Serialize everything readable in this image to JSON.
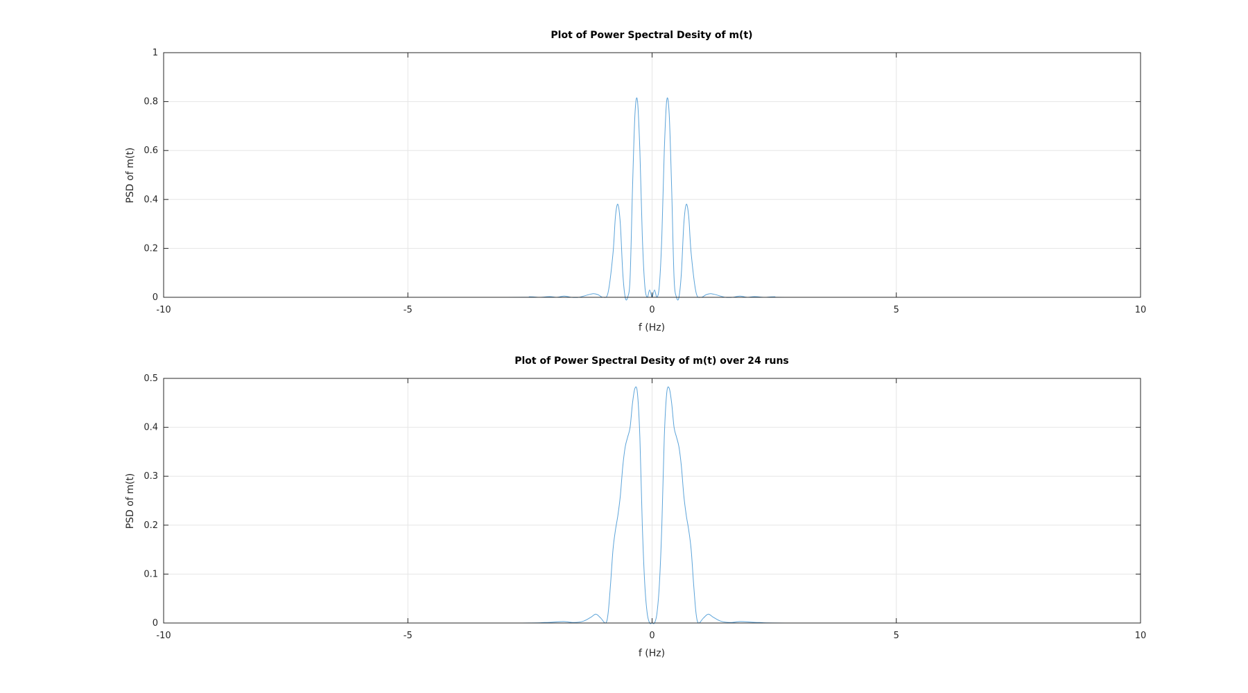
{
  "chart_data": [
    {
      "type": "line",
      "title": "Plot of Power Spectral Desity of m(t)",
      "xlabel": "f (Hz)",
      "ylabel": "PSD of m(t)",
      "xlim": [
        -10,
        10
      ],
      "ylim": [
        0,
        1
      ],
      "xticks": [
        -10,
        -5,
        0,
        5,
        10
      ],
      "yticks": [
        0,
        0.2,
        0.4,
        0.6,
        0.8,
        1
      ],
      "xtick_labels": [
        "-10",
        "-5",
        "0",
        "5",
        "10"
      ],
      "ytick_labels": [
        "0",
        "0.2",
        "0.4",
        "0.6",
        "0.8",
        "1"
      ],
      "grid": true,
      "color": "#5ba3d9",
      "series": [
        {
          "x": [
            -8,
            -3.0,
            -2.5,
            -2.3,
            -2.1,
            -1.95,
            -1.8,
            -1.65,
            -1.5,
            -1.35,
            -1.2,
            -1.1,
            -1.0,
            -0.9,
            -0.8,
            -0.75,
            -0.7,
            -0.65,
            -0.6,
            -0.55,
            -0.5,
            -0.45,
            -0.4,
            -0.35,
            -0.3,
            -0.25,
            -0.2,
            -0.15,
            -0.1,
            -0.05,
            0,
            0.05,
            0.1,
            0.15,
            0.2,
            0.25,
            0.3,
            0.35,
            0.4,
            0.45,
            0.5,
            0.55,
            0.6,
            0.65,
            0.7,
            0.75,
            0.8,
            0.9,
            1.0,
            1.1,
            1.2,
            1.35,
            1.5,
            1.65,
            1.8,
            1.95,
            2.1,
            2.3,
            2.5,
            3.0,
            8
          ],
          "y": [
            0,
            0,
            0.002,
            0,
            0.003,
            0,
            0.005,
            0,
            0.0,
            0.008,
            0.015,
            0.01,
            0.0,
            0.02,
            0.18,
            0.33,
            0.38,
            0.3,
            0.1,
            0.0,
            0.0,
            0.08,
            0.45,
            0.75,
            0.805,
            0.6,
            0.25,
            0.05,
            0.0,
            0.03,
            0.0,
            0.03,
            0.0,
            0.05,
            0.25,
            0.6,
            0.805,
            0.75,
            0.45,
            0.08,
            0.0,
            0.0,
            0.1,
            0.3,
            0.38,
            0.33,
            0.18,
            0.02,
            0.0,
            0.01,
            0.015,
            0.008,
            0.0,
            0,
            0.005,
            0,
            0.003,
            0,
            0.002,
            0,
            0
          ]
        }
      ]
    },
    {
      "type": "line",
      "title": "Plot of Power Spectral Desity of m(t) over 24 runs",
      "xlabel": "f (Hz)",
      "ylabel": "PSD of m(t)",
      "xlim": [
        -10,
        10
      ],
      "ylim": [
        0,
        0.5
      ],
      "xticks": [
        -10,
        -5,
        0,
        5,
        10
      ],
      "yticks": [
        0,
        0.1,
        0.2,
        0.3,
        0.4,
        0.5
      ],
      "xtick_labels": [
        "-10",
        "-5",
        "0",
        "5",
        "10"
      ],
      "ytick_labels": [
        "0",
        "0.1",
        "0.2",
        "0.3",
        "0.4",
        "0.5"
      ],
      "grid": true,
      "color": "#5ba3d9",
      "series": [
        {
          "x": [
            -8,
            -3.0,
            -2.2,
            -2.0,
            -1.8,
            -1.6,
            -1.4,
            -1.25,
            -1.15,
            -1.05,
            -0.95,
            -0.9,
            -0.85,
            -0.8,
            -0.75,
            -0.7,
            -0.65,
            -0.6,
            -0.55,
            -0.5,
            -0.45,
            -0.4,
            -0.35,
            -0.3,
            -0.25,
            -0.2,
            -0.15,
            -0.1,
            -0.05,
            0,
            0.05,
            0.1,
            0.15,
            0.2,
            0.25,
            0.3,
            0.35,
            0.4,
            0.45,
            0.5,
            0.55,
            0.6,
            0.65,
            0.7,
            0.75,
            0.8,
            0.85,
            0.9,
            0.95,
            1.05,
            1.15,
            1.25,
            1.4,
            1.6,
            1.8,
            2.0,
            2.2,
            3.0,
            8
          ],
          "y": [
            0,
            0,
            0.001,
            0.002,
            0.003,
            0.001,
            0.004,
            0.012,
            0.018,
            0.01,
            0.0,
            0.02,
            0.08,
            0.15,
            0.19,
            0.22,
            0.26,
            0.32,
            0.36,
            0.38,
            0.4,
            0.45,
            0.48,
            0.47,
            0.38,
            0.2,
            0.08,
            0.02,
            0.0,
            0.0,
            0.0,
            0.02,
            0.08,
            0.2,
            0.38,
            0.47,
            0.48,
            0.45,
            0.4,
            0.38,
            0.36,
            0.32,
            0.26,
            0.22,
            0.19,
            0.15,
            0.08,
            0.02,
            0.0,
            0.01,
            0.018,
            0.012,
            0.004,
            0.001,
            0.003,
            0.002,
            0.001,
            0,
            0
          ]
        }
      ]
    }
  ]
}
